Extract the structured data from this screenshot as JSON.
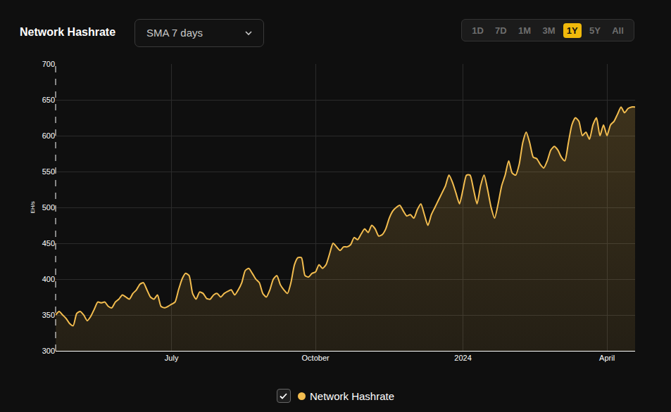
{
  "header": {
    "smoothing": "SMA 7 days",
    "ranges": [
      "1D",
      "7D",
      "1M",
      "3M",
      "1Y",
      "5Y",
      "All"
    ],
    "selected_range": "1Y"
  },
  "chart_data": {
    "type": "line",
    "title": "Network Hashrate",
    "y_label": "EH/s",
    "categories": [
      null,
      null,
      null,
      null,
      null,
      null,
      null,
      null,
      null,
      null,
      null,
      null,
      null,
      null,
      null,
      null,
      null,
      null,
      null,
      null,
      null,
      null,
      null,
      null,
      null,
      null,
      null,
      null,
      null,
      null,
      null,
      null,
      null,
      "July",
      null,
      null,
      null,
      null,
      null,
      null,
      null,
      null,
      null,
      null,
      null,
      null,
      null,
      null,
      null,
      null,
      null,
      null,
      null,
      null,
      null,
      null,
      null,
      null,
      null,
      null,
      null,
      null,
      null,
      null,
      null,
      null,
      null,
      null,
      null,
      null,
      null,
      null,
      null,
      null,
      "October",
      null,
      null,
      null,
      null,
      null,
      null,
      null,
      null,
      null,
      null,
      null,
      null,
      null,
      null,
      null,
      null,
      null,
      null,
      null,
      null,
      null,
      null,
      null,
      null,
      null,
      null,
      null,
      null,
      null,
      null,
      null,
      null,
      null,
      null,
      null,
      null,
      null,
      null,
      null,
      null,
      null,
      "2024",
      null,
      null,
      null,
      null,
      null,
      null,
      null,
      null,
      null,
      null,
      null,
      null,
      null,
      null,
      null,
      null,
      null,
      null,
      null,
      null,
      null,
      null,
      null,
      null,
      null,
      null,
      null,
      null,
      null,
      null,
      null,
      null,
      null,
      null,
      null,
      null,
      null,
      null,
      null,
      null,
      "April",
      null,
      null,
      null,
      null,
      null,
      null,
      null,
      null
    ],
    "series": [
      {
        "name": "Network Hashrate",
        "color": "#f3bd4f",
        "values": [
          350,
          355,
          350,
          345,
          338,
          335,
          352,
          355,
          350,
          342,
          348,
          358,
          368,
          367,
          368,
          362,
          360,
          368,
          372,
          378,
          375,
          372,
          380,
          385,
          393,
          395,
          385,
          375,
          372,
          378,
          362,
          360,
          362,
          365,
          368,
          385,
          400,
          408,
          405,
          380,
          372,
          382,
          380,
          373,
          372,
          378,
          380,
          375,
          380,
          383,
          385,
          378,
          385,
          395,
          412,
          415,
          408,
          400,
          395,
          380,
          375,
          385,
          400,
          405,
          392,
          385,
          380,
          395,
          420,
          430,
          430,
          405,
          403,
          408,
          410,
          420,
          415,
          420,
          435,
          450,
          445,
          440,
          445,
          445,
          448,
          458,
          455,
          463,
          470,
          465,
          475,
          470,
          460,
          462,
          470,
          485,
          495,
          500,
          503,
          495,
          488,
          490,
          485,
          497,
          505,
          490,
          475,
          490,
          500,
          510,
          520,
          530,
          545,
          535,
          520,
          505,
          525,
          545,
          545,
          525,
          505,
          530,
          545,
          525,
          500,
          485,
          505,
          530,
          545,
          565,
          548,
          545,
          560,
          590,
          605,
          590,
          570,
          568,
          560,
          555,
          565,
          580,
          585,
          580,
          570,
          565,
          590,
          615,
          625,
          620,
          600,
          605,
          595,
          615,
          625,
          600,
          615,
          600,
          615,
          620,
          630,
          640,
          632,
          638,
          640,
          640
        ]
      }
    ],
    "ylim": [
      300,
      700
    ],
    "yticks": [
      300,
      350,
      400,
      450,
      500,
      550,
      600,
      650,
      700
    ],
    "grid": true,
    "legend": "bottom"
  }
}
